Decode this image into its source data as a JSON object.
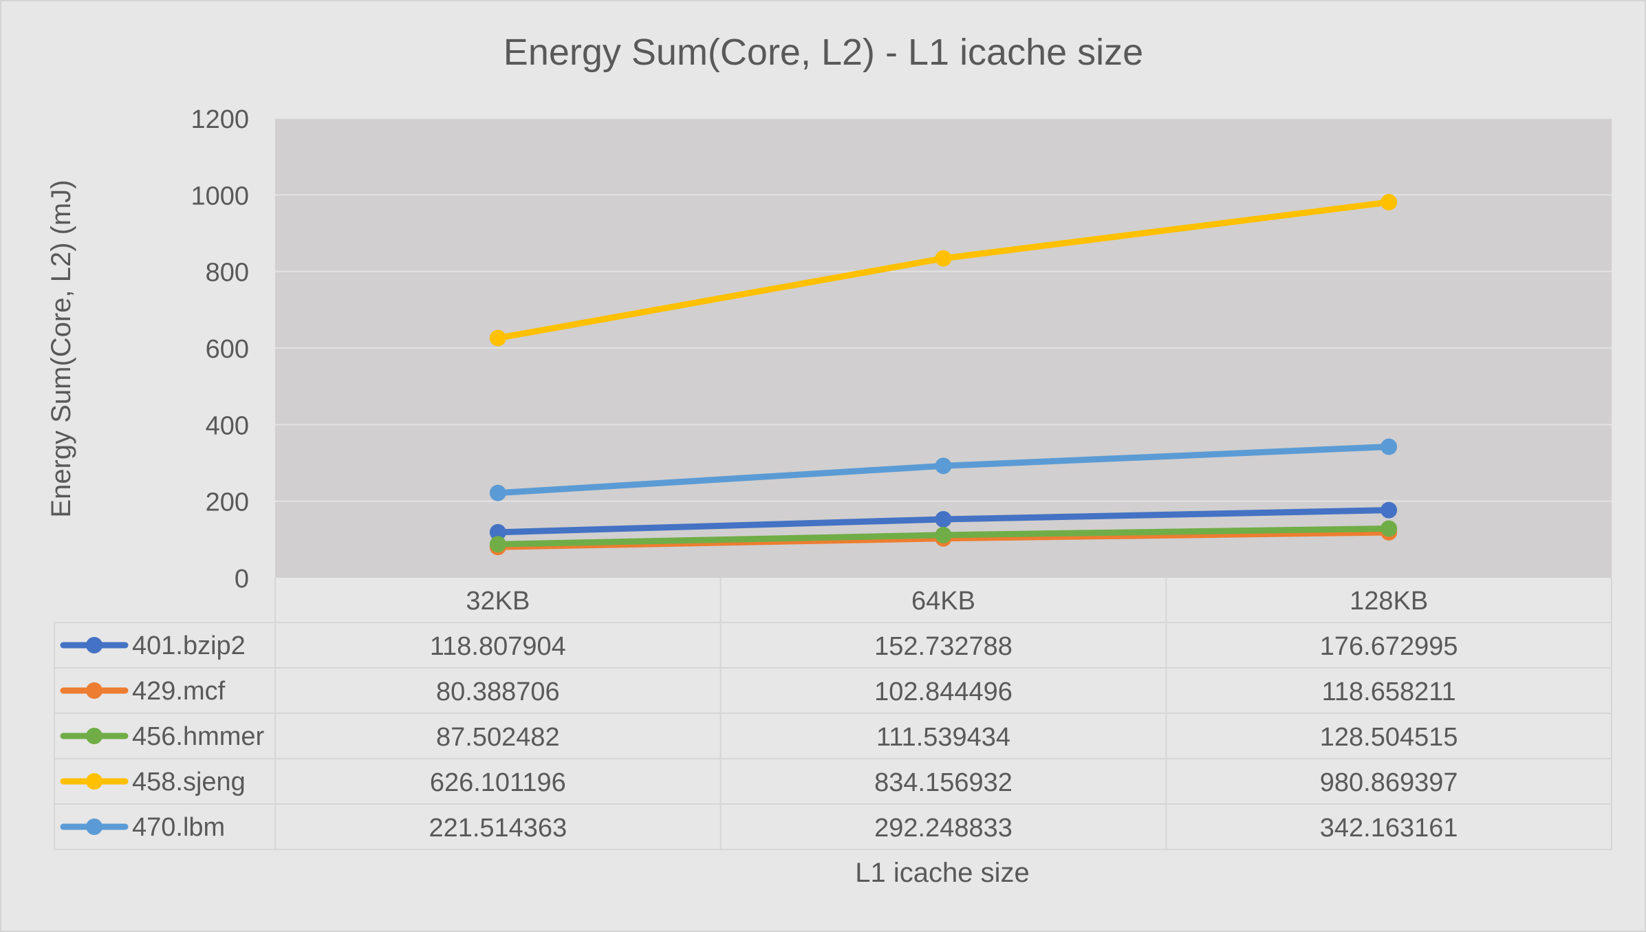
{
  "chart_data": {
    "type": "line",
    "title": "Energy Sum(Core, L2) - L1 icache size",
    "xlabel": "L1 icache size",
    "ylabel": "Energy Sum(Core, L2) (mJ)",
    "categories": [
      "32KB",
      "64KB",
      "128KB"
    ],
    "ylim": [
      0,
      1200
    ],
    "yticks": [
      0,
      200,
      400,
      600,
      800,
      1000,
      1200
    ],
    "grid": true,
    "legend": "data-table-left",
    "series": [
      {
        "name": "401.bzip2",
        "color": "#4472C4",
        "values": [
          118.807904,
          152.732788,
          176.672995
        ],
        "labels": [
          "118.807904",
          "152.732788",
          "176.672995"
        ]
      },
      {
        "name": "429.mcf",
        "color": "#ED7D31",
        "values": [
          80.388706,
          102.844496,
          118.658211
        ],
        "labels": [
          "80.388706",
          "102.844496",
          "118.658211"
        ]
      },
      {
        "name": "456.hmmer",
        "color": "#70AD47",
        "values": [
          87.502482,
          111.539434,
          128.504515
        ],
        "labels": [
          "87.502482",
          "111.539434",
          "128.504515"
        ]
      },
      {
        "name": "458.sjeng",
        "color": "#FFC000",
        "values": [
          626.101196,
          834.156932,
          980.869397
        ],
        "labels": [
          "626.101196",
          "834.156932",
          "980.869397"
        ]
      },
      {
        "name": "470.lbm",
        "color": "#5B9BD5",
        "values": [
          221.514363,
          292.248833,
          342.163161
        ],
        "labels": [
          "221.514363",
          "292.248833",
          "342.163161"
        ]
      }
    ]
  }
}
